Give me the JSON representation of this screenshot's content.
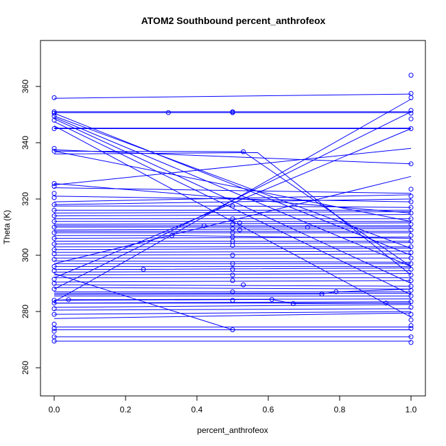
{
  "chart_data": {
    "type": "line",
    "title": "ATOM2 Southbound percent_anthrofeox",
    "xlabel": "percent_anthrofeox",
    "ylabel": "Theta (K)",
    "xlim": [
      0.0,
      1.0
    ],
    "ylim": [
      260,
      370
    ],
    "xticks": [
      "0.0",
      "0.2",
      "0.4",
      "0.6",
      "0.8",
      "1.0"
    ],
    "yticks": [
      "260",
      "280",
      "300",
      "320",
      "340",
      "360"
    ],
    "grid": false,
    "series_color": "#0000ff",
    "profiles": [
      {
        "x": [
          0,
          1
        ],
        "y": [
          269.5,
          269.5
        ]
      },
      {
        "x": [
          0,
          1
        ],
        "y": [
          271.0,
          271.0
        ]
      },
      {
        "x": [
          0,
          1
        ],
        "y": [
          273.5,
          273.5
        ]
      },
      {
        "x": [
          0,
          1
        ],
        "y": [
          274.5,
          274.5
        ]
      },
      {
        "x": [
          0,
          1
        ],
        "y": [
          277.5,
          279.5
        ]
      },
      {
        "x": [
          0,
          1
        ],
        "y": [
          279.0,
          280.0
        ]
      },
      {
        "x": [
          0,
          1
        ],
        "y": [
          280.5,
          281.0
        ]
      },
      {
        "x": [
          0,
          1
        ],
        "y": [
          281.5,
          282.5
        ]
      },
      {
        "x": [
          0,
          1
        ],
        "y": [
          283.0,
          283.5
        ]
      },
      {
        "x": [
          0,
          0.04,
          1
        ],
        "y": [
          284.0,
          284.2,
          284.5
        ]
      },
      {
        "x": [
          0,
          1
        ],
        "y": [
          285.5,
          285.5
        ]
      },
      {
        "x": [
          0,
          0.5,
          1
        ],
        "y": [
          286.5,
          286.5,
          286.5
        ]
      },
      {
        "x": [
          0,
          0.5,
          1
        ],
        "y": [
          287.0,
          287.0,
          287.0
        ]
      },
      {
        "x": [
          0,
          1
        ],
        "y": [
          288.5,
          288.0
        ]
      },
      {
        "x": [
          0,
          1
        ],
        "y": [
          289.5,
          289.0
        ]
      },
      {
        "x": [
          0,
          1
        ],
        "y": [
          290.5,
          291.0
        ]
      },
      {
        "x": [
          0,
          1
        ],
        "y": [
          292.0,
          292.0
        ]
      },
      {
        "x": [
          0,
          1
        ],
        "y": [
          293.0,
          293.5
        ]
      },
      {
        "x": [
          0,
          1
        ],
        "y": [
          294.0,
          294.5
        ]
      },
      {
        "x": [
          0,
          0.25,
          1
        ],
        "y": [
          295.0,
          295.0,
          295.5
        ]
      },
      {
        "x": [
          0,
          1
        ],
        "y": [
          296.0,
          296.0
        ]
      },
      {
        "x": [
          0,
          0.5,
          1
        ],
        "y": [
          297.0,
          297.0,
          297.0
        ]
      },
      {
        "x": [
          0,
          1
        ],
        "y": [
          298.0,
          297.5
        ]
      },
      {
        "x": [
          0,
          1
        ],
        "y": [
          299.0,
          299.0
        ]
      },
      {
        "x": [
          0,
          1
        ],
        "y": [
          300.0,
          300.5
        ]
      },
      {
        "x": [
          0,
          1
        ],
        "y": [
          301.0,
          301.5
        ]
      },
      {
        "x": [
          0,
          1
        ],
        "y": [
          302.0,
          302.5
        ]
      },
      {
        "x": [
          0,
          1
        ],
        "y": [
          303.0,
          303.0
        ]
      },
      {
        "x": [
          0,
          1
        ],
        "y": [
          304.0,
          304.5
        ]
      },
      {
        "x": [
          0,
          0.5,
          1
        ],
        "y": [
          305.0,
          305.0,
          305.0
        ]
      },
      {
        "x": [
          0,
          1
        ],
        "y": [
          306.0,
          306.5
        ]
      },
      {
        "x": [
          0,
          0.33,
          1
        ],
        "y": [
          307.0,
          307.0,
          306.0
        ]
      },
      {
        "x": [
          0,
          1
        ],
        "y": [
          308.0,
          308.0
        ]
      },
      {
        "x": [
          0,
          0.5,
          1
        ],
        "y": [
          308.5,
          308.5,
          308.5
        ]
      },
      {
        "x": [
          0,
          1
        ],
        "y": [
          309.0,
          309.5
        ]
      },
      {
        "x": [
          0,
          1
        ],
        "y": [
          310.0,
          310.0
        ]
      },
      {
        "x": [
          0,
          0.42,
          1
        ],
        "y": [
          310.5,
          310.5,
          310.5
        ]
      },
      {
        "x": [
          0,
          1
        ],
        "y": [
          311.0,
          311.5
        ]
      },
      {
        "x": [
          0,
          1
        ],
        "y": [
          312.0,
          312.0
        ]
      },
      {
        "x": [
          0,
          1
        ],
        "y": [
          313.0,
          313.0
        ]
      },
      {
        "x": [
          0,
          1
        ],
        "y": [
          314.0,
          314.5
        ]
      },
      {
        "x": [
          0,
          1
        ],
        "y": [
          315.0,
          315.5
        ]
      },
      {
        "x": [
          0,
          1
        ],
        "y": [
          316.0,
          316.0
        ]
      },
      {
        "x": [
          0,
          0.5,
          1
        ],
        "y": [
          317.5,
          317.5,
          317.0
        ]
      },
      {
        "x": [
          0,
          1
        ],
        "y": [
          318.0,
          320.0
        ]
      },
      {
        "x": [
          0,
          1
        ],
        "y": [
          319.0,
          321.5
        ]
      },
      {
        "x": [
          0,
          1
        ],
        "y": [
          321.0,
          319.0
        ]
      },
      {
        "x": [
          0,
          1
        ],
        "y": [
          324.0,
          322.0
        ]
      },
      {
        "x": [
          0,
          1
        ],
        "y": [
          325.5,
          315.0
        ]
      },
      {
        "x": [
          0,
          1
        ],
        "y": [
          325.0,
          338.0
        ]
      },
      {
        "x": [
          0,
          1
        ],
        "y": [
          337.0,
          312.0
        ]
      },
      {
        "x": [
          0,
          1
        ],
        "y": [
          337.5,
          332.5
        ]
      },
      {
        "x": [
          0,
          1
        ],
        "y": [
          345.0,
          345.0
        ]
      },
      {
        "x": [
          0,
          1
        ],
        "y": [
          345.2,
          345.2
        ]
      },
      {
        "x": [
          0,
          1
        ],
        "y": [
          348.5,
          290.0
        ]
      },
      {
        "x": [
          0,
          1
        ],
        "y": [
          349.5,
          302.5
        ]
      },
      {
        "x": [
          0,
          1
        ],
        "y": [
          350.5,
          300.0
        ]
      },
      {
        "x": [
          0,
          1
        ],
        "y": [
          349.0,
          296.0
        ]
      },
      {
        "x": [
          0,
          1
        ],
        "y": [
          347.5,
          286.0
        ]
      },
      {
        "x": [
          0,
          1
        ],
        "y": [
          346.0,
          278.0
        ]
      },
      {
        "x": [
          0,
          0.32,
          0.5,
          1
        ],
        "y": [
          350.7,
          350.7,
          350.7,
          350.7
        ]
      },
      {
        "x": [
          0,
          0.5,
          1
        ],
        "y": [
          351.0,
          351.0,
          351.0
        ]
      },
      {
        "x": [
          0,
          1
        ],
        "y": [
          355.8,
          357.3
        ]
      },
      {
        "x": [
          0,
          1
        ],
        "y": [
          283.5,
          355.5
        ]
      },
      {
        "x": [
          0,
          1
        ],
        "y": [
          288.0,
          351.0
        ]
      },
      {
        "x": [
          0,
          1
        ],
        "y": [
          292.0,
          345.0
        ]
      },
      {
        "x": [
          0,
          1
        ],
        "y": [
          297.0,
          328.0
        ]
      },
      {
        "x": [
          0,
          0.53,
          1
        ],
        "y": [
          337.0,
          336.8,
          296.0
        ]
      },
      {
        "x": [
          0,
          0.57,
          1
        ],
        "y": [
          336.0,
          336.5,
          293.0
        ]
      },
      {
        "x": [
          0,
          0.5,
          1
        ],
        "y": [
          293.5,
          273.5,
          273.5
        ]
      },
      {
        "x": [
          0,
          0.61,
          0.67,
          1
        ],
        "y": [
          284.0,
          284.3,
          282.8,
          283.0
        ]
      },
      {
        "x": [
          0,
          0.75,
          0.79,
          1
        ],
        "y": [
          286.0,
          286.2,
          287.0,
          288.0
        ]
      },
      {
        "x": [
          0,
          0.93,
          1
        ],
        "y": [
          283.0,
          283.0,
          283.0
        ]
      },
      {
        "x": [
          0,
          0.71,
          1
        ],
        "y": [
          310.0,
          310.0,
          310.0
        ]
      }
    ],
    "x0_points": [
      269.5,
      271.0,
      273.0,
      274.0,
      275.5,
      279.0,
      281.0,
      283.0,
      284.0,
      288.0,
      290.0,
      291.5,
      294.5,
      296.0,
      298.5,
      300.5,
      302.0,
      304.0,
      306.0,
      308.0,
      310.0,
      312.0,
      314.0,
      316.0,
      318.0,
      320.5,
      322.0,
      324.5,
      325.5,
      337.0,
      338.0,
      345.0,
      348.0,
      349.5,
      350.5,
      351.0,
      356.0
    ],
    "x1_points": [
      269.0,
      271.0,
      274.0,
      275.0,
      277.0,
      279.0,
      281.5,
      283.5,
      285.5,
      287.5,
      289.0,
      291.0,
      293.0,
      295.0,
      297.0,
      299.0,
      301.0,
      303.0,
      305.0,
      307.0,
      309.0,
      311.0,
      313.0,
      315.0,
      317.0,
      319.0,
      321.0,
      323.5,
      332.5,
      345.0,
      348.5,
      350.5,
      351.5,
      356.0,
      357.5,
      364.0
    ],
    "xmid_points": [
      {
        "x": 0.5,
        "y": 273.5
      },
      {
        "x": 0.5,
        "y": 284.0
      },
      {
        "x": 0.5,
        "y": 287.0
      },
      {
        "x": 0.5,
        "y": 291.0
      },
      {
        "x": 0.5,
        "y": 293.0
      },
      {
        "x": 0.5,
        "y": 295.0
      },
      {
        "x": 0.5,
        "y": 297.0
      },
      {
        "x": 0.5,
        "y": 300.0
      },
      {
        "x": 0.5,
        "y": 303.5
      },
      {
        "x": 0.5,
        "y": 305.0
      },
      {
        "x": 0.5,
        "y": 306.5
      },
      {
        "x": 0.5,
        "y": 308.0
      },
      {
        "x": 0.5,
        "y": 309.5
      },
      {
        "x": 0.5,
        "y": 311.0
      },
      {
        "x": 0.5,
        "y": 313.0
      },
      {
        "x": 0.5,
        "y": 317.5
      },
      {
        "x": 0.5,
        "y": 350.7
      },
      {
        "x": 0.5,
        "y": 351.0
      },
      {
        "x": 0.04,
        "y": 284.2
      },
      {
        "x": 0.25,
        "y": 295.0
      },
      {
        "x": 0.32,
        "y": 350.7
      },
      {
        "x": 0.33,
        "y": 307.0
      },
      {
        "x": 0.42,
        "y": 310.5
      },
      {
        "x": 0.53,
        "y": 336.8
      },
      {
        "x": 0.53,
        "y": 289.5
      },
      {
        "x": 0.61,
        "y": 284.3
      },
      {
        "x": 0.67,
        "y": 282.8
      },
      {
        "x": 0.71,
        "y": 310.0
      },
      {
        "x": 0.75,
        "y": 286.2
      },
      {
        "x": 0.79,
        "y": 287.0
      },
      {
        "x": 0.93,
        "y": 283.0
      },
      {
        "x": 0.52,
        "y": 309.0
      },
      {
        "x": 0.52,
        "y": 311.5
      }
    ]
  }
}
